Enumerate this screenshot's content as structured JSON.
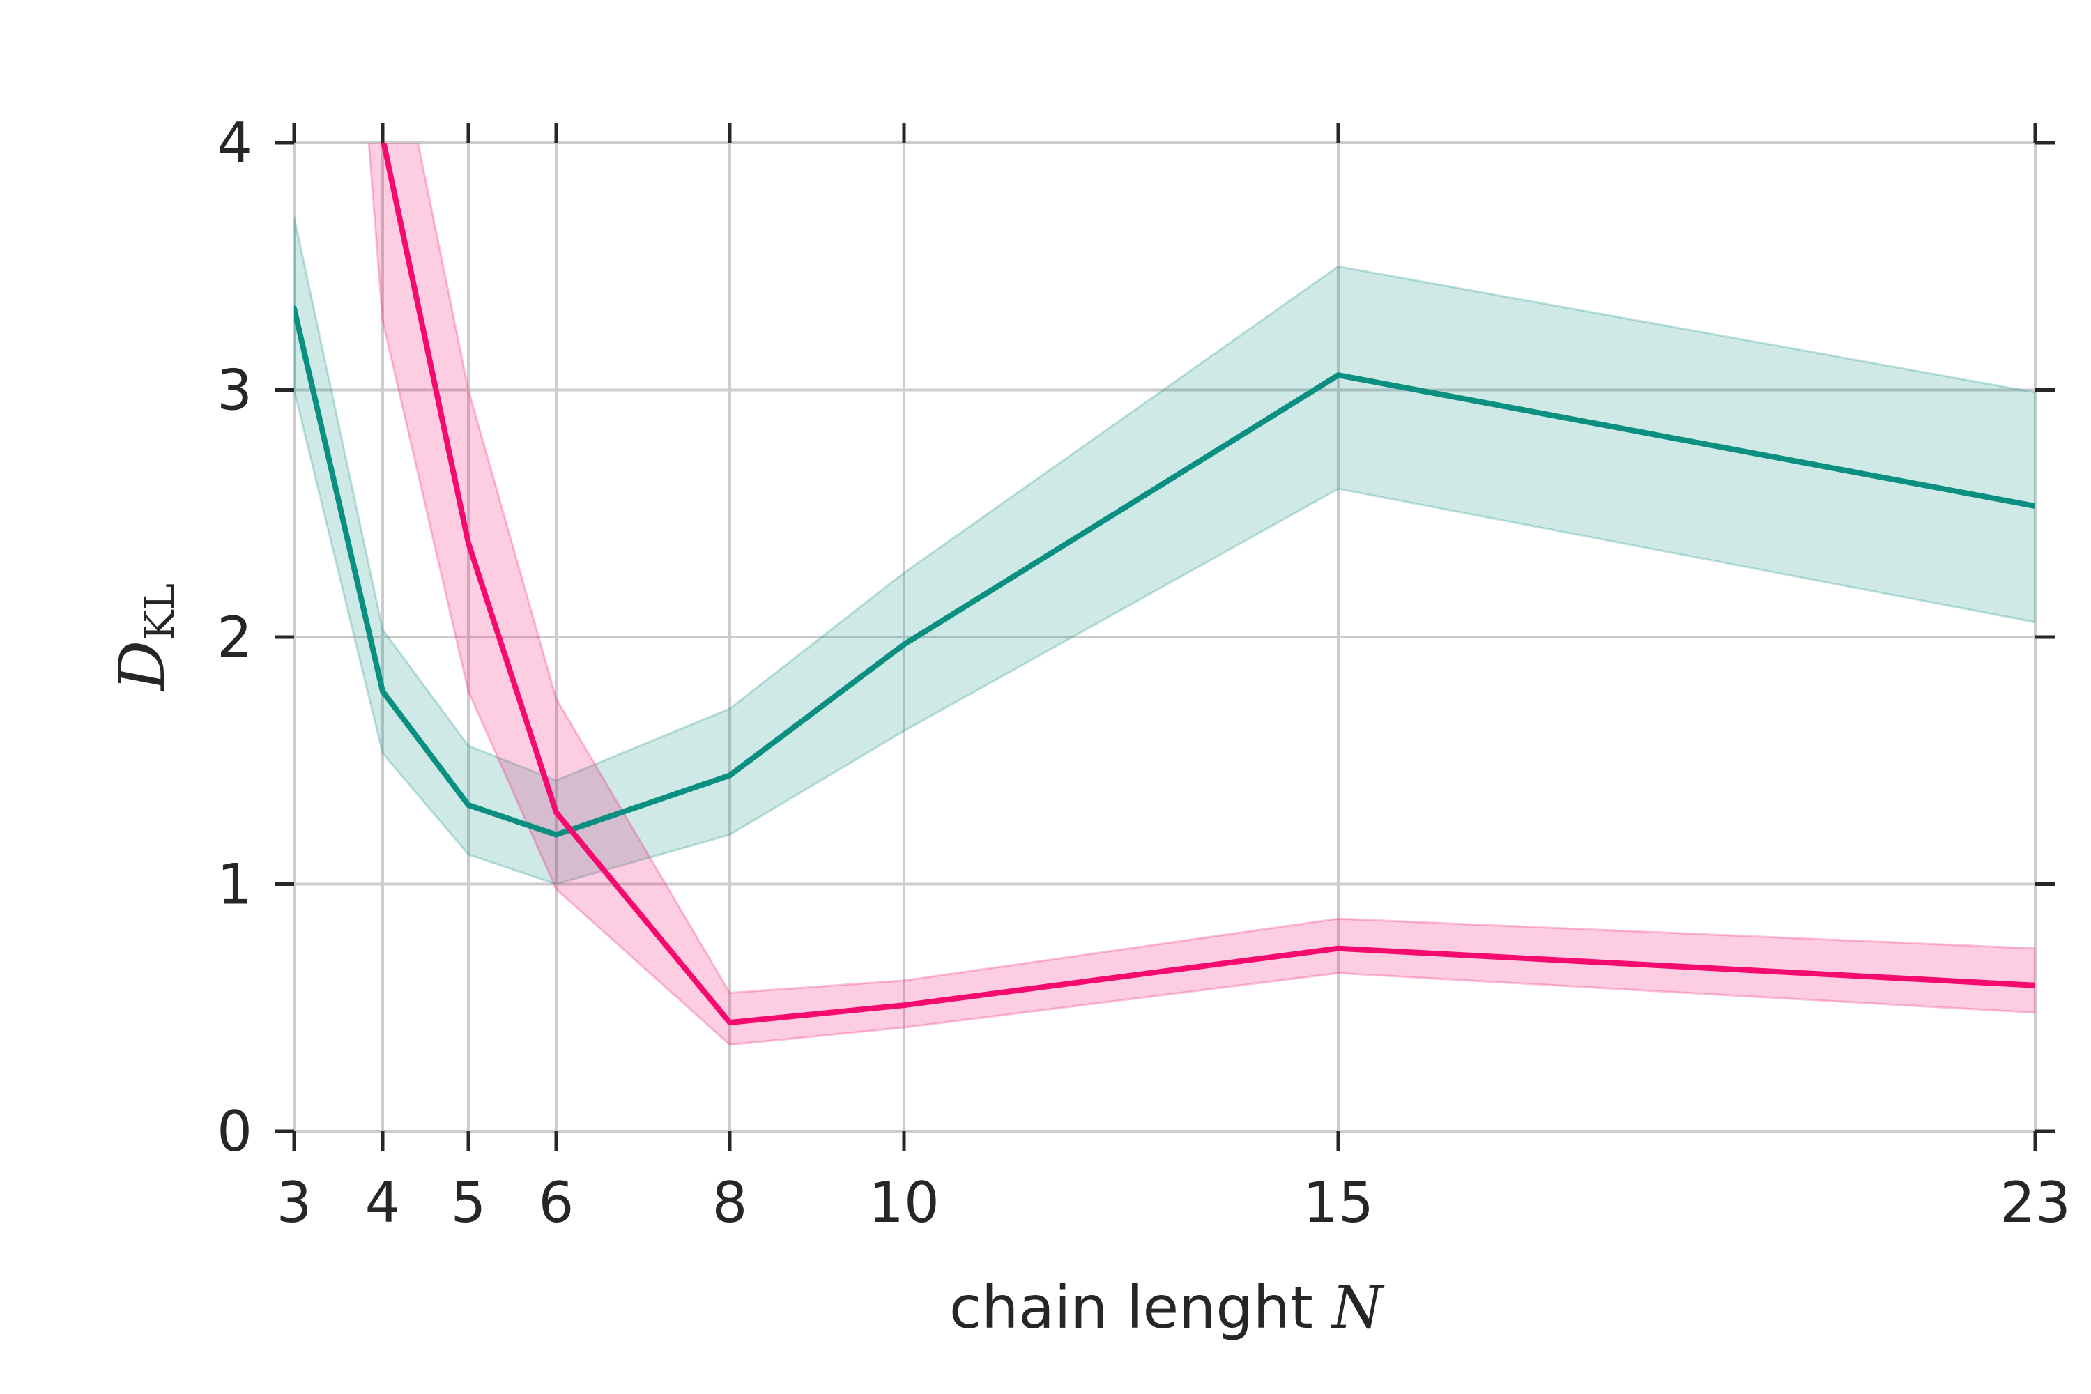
{
  "chart_data": {
    "type": "line",
    "xlabel": {
      "text": "chain lenght ",
      "var": "N"
    },
    "ylabel": {
      "main": "D",
      "sub": "KL"
    },
    "x_ticks": [
      3,
      4,
      5,
      6,
      8,
      10,
      15,
      23
    ],
    "x_tick_labels": [
      "3",
      "4",
      "5",
      "6",
      "8",
      "10",
      "15",
      "23"
    ],
    "y_ticks": [
      0,
      1,
      2,
      3,
      4
    ],
    "y_tick_labels": [
      "0",
      "1",
      "2",
      "3",
      "4"
    ],
    "ylim": [
      0,
      4
    ],
    "x_scale": "custom-nonlinear",
    "grid": true,
    "series": [
      {
        "color": "#0a8f80",
        "band_color": "#0a8f80",
        "x": [
          3,
          4,
          5,
          6,
          8,
          10,
          15,
          23
        ],
        "y": [
          3.33,
          1.78,
          1.32,
          1.2,
          1.44,
          1.97,
          3.06,
          2.53
        ],
        "lower": [
          3.0,
          1.53,
          1.12,
          1.0,
          1.2,
          1.62,
          2.6,
          2.06
        ],
        "upper": [
          3.7,
          2.03,
          1.56,
          1.42,
          1.71,
          2.26,
          3.5,
          2.99
        ]
      },
      {
        "color": "#f50a70",
        "band_color": "#f50a70",
        "x": [
          3.8,
          4,
          5,
          6,
          8,
          10,
          15,
          23
        ],
        "y": [
          4.6,
          4.02,
          2.38,
          1.29,
          0.44,
          0.51,
          0.74,
          0.59
        ],
        "lower": [
          4.2,
          3.28,
          1.78,
          0.98,
          0.35,
          0.42,
          0.64,
          0.48
        ],
        "upper": [
          5.0,
          4.7,
          3.0,
          1.75,
          0.56,
          0.61,
          0.86,
          0.74
        ]
      }
    ]
  }
}
